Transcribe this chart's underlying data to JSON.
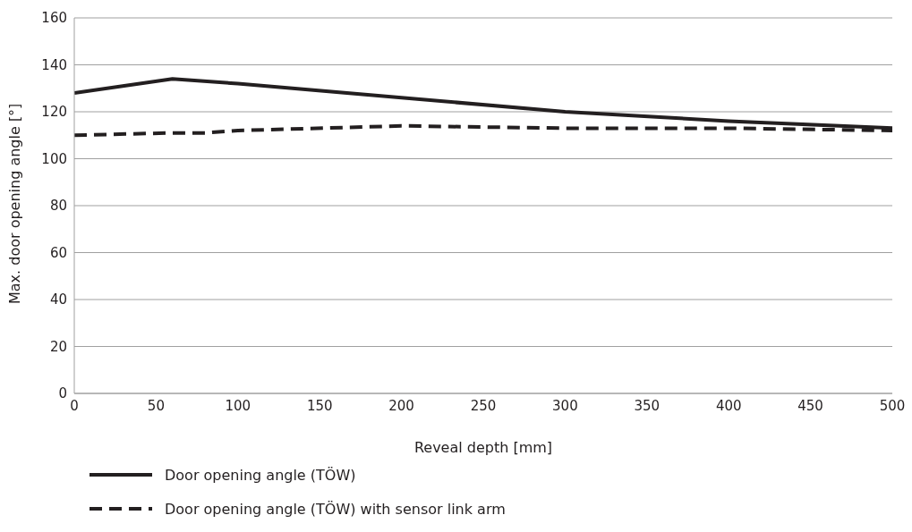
{
  "chart_data": {
    "type": "line",
    "xlabel": "Reveal depth [mm]",
    "ylabel": "Max. door opening angle [°]",
    "xlim": [
      0,
      500
    ],
    "xticks": [
      0,
      50,
      100,
      150,
      200,
      250,
      300,
      350,
      400,
      450,
      500
    ],
    "ylim": [
      0,
      160
    ],
    "yticks": [
      0,
      20,
      40,
      60,
      80,
      100,
      120,
      140,
      160
    ],
    "grid": "y",
    "legend": "bottom",
    "marker": "none",
    "series": [
      {
        "name": "Door opening angle (TÖW)",
        "color": "#231f20",
        "line_style": "solid",
        "x": [
          0,
          60,
          100,
          200,
          300,
          400,
          500
        ],
        "values": [
          128,
          134,
          132,
          126,
          120,
          116,
          113
        ]
      },
      {
        "name": "Door opening angle (TÖW) with sensor link arm",
        "color": "#231f20",
        "line_style": "dashed",
        "x": [
          0,
          60,
          80,
          100,
          200,
          300,
          400,
          500
        ],
        "values": [
          110,
          111,
          111,
          112,
          114,
          113,
          113,
          112
        ]
      }
    ]
  }
}
